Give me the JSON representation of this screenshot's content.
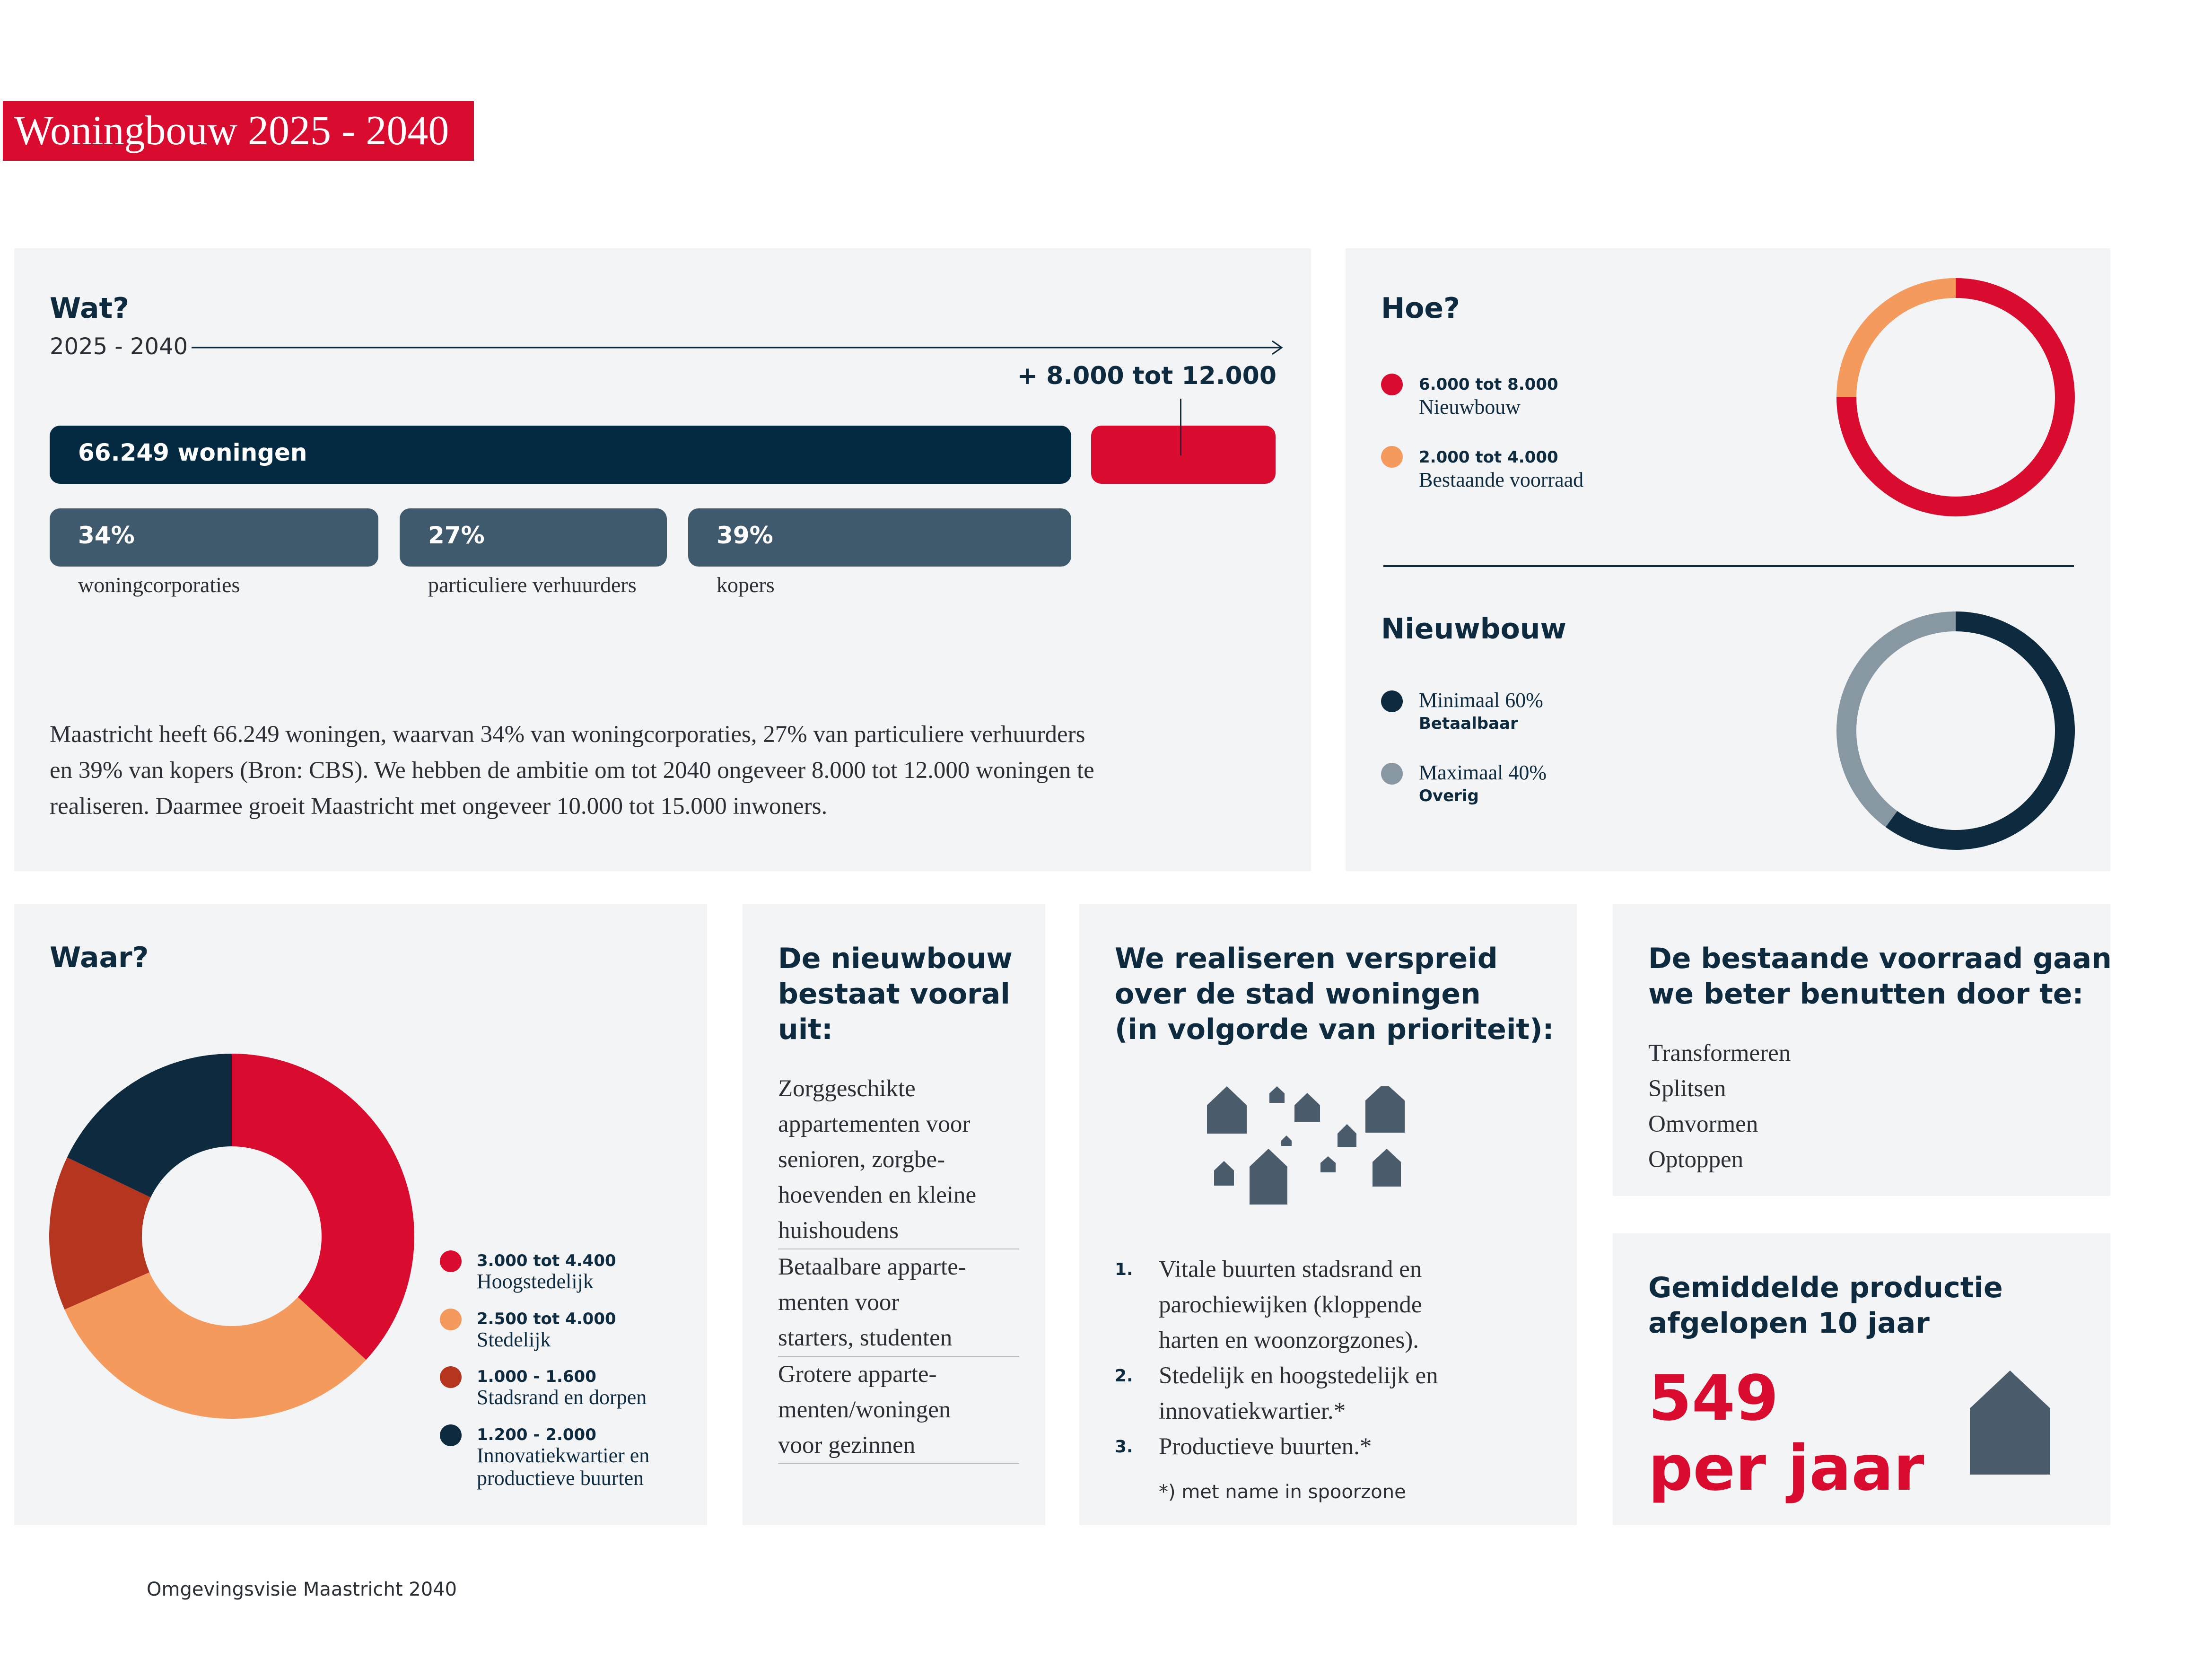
{
  "header": {
    "title": "Woningbouw 2025 - 2040"
  },
  "wat": {
    "heading": "Wat?",
    "period": "2025 - 2040",
    "growth": "+ 8.000 tot 12.000",
    "total_label": "66.249 woningen",
    "segments": [
      {
        "pct_label": "34%",
        "label": "woningcorporaties"
      },
      {
        "pct_label": "27%",
        "label": "particuliere verhuurders"
      },
      {
        "pct_label": "39%",
        "label": "kopers"
      }
    ],
    "paragraph": [
      "Maastricht heeft 66.249 woningen, waarvan 34% van woningcorporaties, 27% van particuliere verhuurders",
      "en 39% van kopers (Bron: CBS). We hebben de ambitie om tot 2040 ongeveer 8.000 tot 12.000 woningen te",
      "realiseren. Daarmee groeit Maastricht met ongeveer 10.000 tot 15.000 inwoners."
    ]
  },
  "hoe": {
    "heading": "Hoe?",
    "legend": [
      {
        "value": "6.000 tot 8.000",
        "label": "Nieuwbouw",
        "color": "#d90b2f",
        "share": 0.75
      },
      {
        "value": "2.000 tot 4.000",
        "label": "Bestaande voorraad",
        "color": "#f39a5c",
        "share": 0.25
      }
    ]
  },
  "nieuwbouw": {
    "heading": "Nieuwbouw",
    "legend": [
      {
        "label": "Minimaal 60%",
        "sub": "Betaalbaar",
        "color": "#0d2a3e",
        "share": 0.6
      },
      {
        "label": "Maximaal 40%",
        "sub": "Overig",
        "color": "#8898a3",
        "share": 0.4
      }
    ]
  },
  "waar": {
    "heading": "Waar?",
    "legend": [
      {
        "value": "3.000 tot 4.400",
        "label": "Hoogstedelijk",
        "color": "#d90b2f",
        "share": 0.35
      },
      {
        "value": "2.500 tot 4.000",
        "label": "Stedelijk",
        "color": "#f39a5c",
        "share": 0.3
      },
      {
        "value": "1.000 - 1.600",
        "label": "Stadsrand en dorpen",
        "color": "#b5351f",
        "share": 0.13
      },
      {
        "value": "1.200 - 2.000",
        "label": "Innovatiekwartier en",
        "label2": "productieve buurten",
        "color": "#0d2a3e",
        "share": 0.17
      }
    ]
  },
  "samenstelling": {
    "heading": [
      "De nieuwbouw",
      "bestaat vooral",
      "uit:"
    ],
    "items": [
      [
        "Zorggeschikte",
        "appartementen voor",
        "senioren, zorgbe-",
        "hoevenden en kleine",
        "huishoudens"
      ],
      [
        "Betaalbare apparte-",
        "menten voor",
        "starters, studenten"
      ],
      [
        "Grotere apparte-",
        "menten/woningen",
        "voor gezinnen"
      ]
    ]
  },
  "spreiding": {
    "heading": [
      "We realiseren verspreid",
      "over de stad woningen",
      "(in volgorde van prioriteit):"
    ],
    "items": [
      {
        "num": "1.",
        "lines": [
          "Vitale buurten stadsrand en",
          "parochiewijken (kloppende",
          "harten en woonzorgzones)."
        ]
      },
      {
        "num": "2.",
        "lines": [
          "Stedelijk en hoogstedelijk en",
          "innovatiekwartier.*"
        ]
      },
      {
        "num": "3.",
        "lines": [
          "Productieve buurten.*"
        ]
      }
    ],
    "footnote": "*) met name in spoorzone"
  },
  "voorraad": {
    "heading": [
      "De bestaande voorraad gaan",
      "we beter benutten door te:"
    ],
    "items": [
      "Transformeren",
      "Splitsen",
      "Omvormen",
      "Optoppen"
    ]
  },
  "productie": {
    "heading": [
      "Gemiddelde productie",
      "afgelopen 10 jaar"
    ],
    "value": "549",
    "unit": "per jaar"
  },
  "footer": {
    "source": "Omgevingsvisie Maastricht 2040"
  },
  "colors": {
    "red": "#d90b2f",
    "navy": "#0d2a3e",
    "slate": "#3f5a6c",
    "orange": "#f39a5c",
    "grey": "#8898a3",
    "house": "#4a5b6c"
  }
}
